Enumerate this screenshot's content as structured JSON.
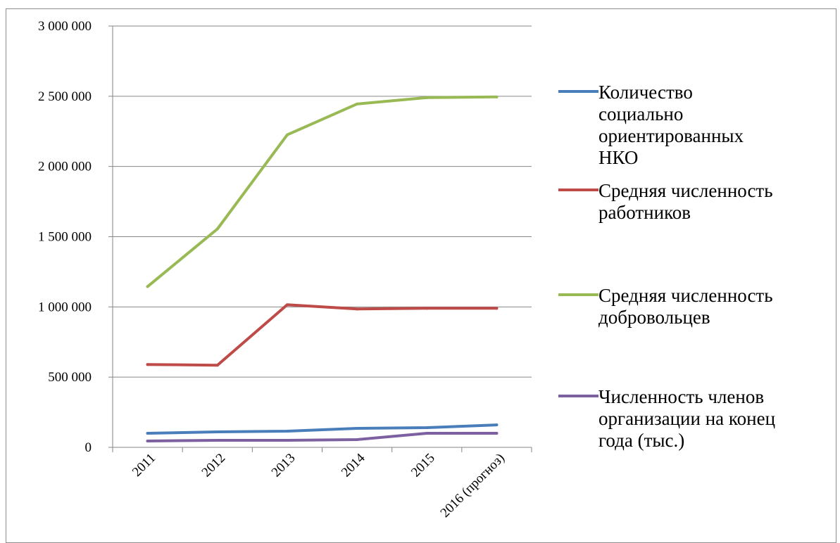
{
  "chart_data": {
    "type": "line",
    "categories": [
      "2011",
      "2012",
      "2013",
      "2014",
      "2015",
      "2016 (прогноз)"
    ],
    "ylim": [
      0,
      3000000
    ],
    "yticks": [
      0,
      500000,
      1000000,
      1500000,
      2000000,
      2500000,
      3000000
    ],
    "ytick_labels": [
      "0",
      "500 000",
      "1 000 000",
      "1 500 000",
      "2 000 000",
      "2 500 000",
      "3 000 000"
    ],
    "grid": true,
    "legend_position": "right",
    "series": [
      {
        "name": "Количество социально ориентированных НКО",
        "legend_lines": [
          "Количество",
          "социально",
          "ориентированных",
          "НКО"
        ],
        "color": "#4a7ebb",
        "values": [
          100000,
          110000,
          115000,
          135000,
          140000,
          160000
        ]
      },
      {
        "name": "Средняя численность работников",
        "legend_lines": [
          "Средняя численность",
          "работников"
        ],
        "color": "#be4b48",
        "values": [
          590000,
          585000,
          1015000,
          985000,
          990000,
          990000
        ]
      },
      {
        "name": "Средняя численность добровольцев",
        "legend_lines": [
          "Средняя численность",
          "добровольцев"
        ],
        "color": "#98b954",
        "values": [
          1145000,
          1555000,
          2225000,
          2445000,
          2490000,
          2495000
        ]
      },
      {
        "name": "Численность членов организации на конец года (тыс.)",
        "legend_lines": [
          "Численность членов",
          "организации на конец",
          "года (тыс.)"
        ],
        "color": "#7d60a0",
        "values": [
          45000,
          50000,
          50000,
          55000,
          100000,
          100000
        ]
      }
    ]
  }
}
